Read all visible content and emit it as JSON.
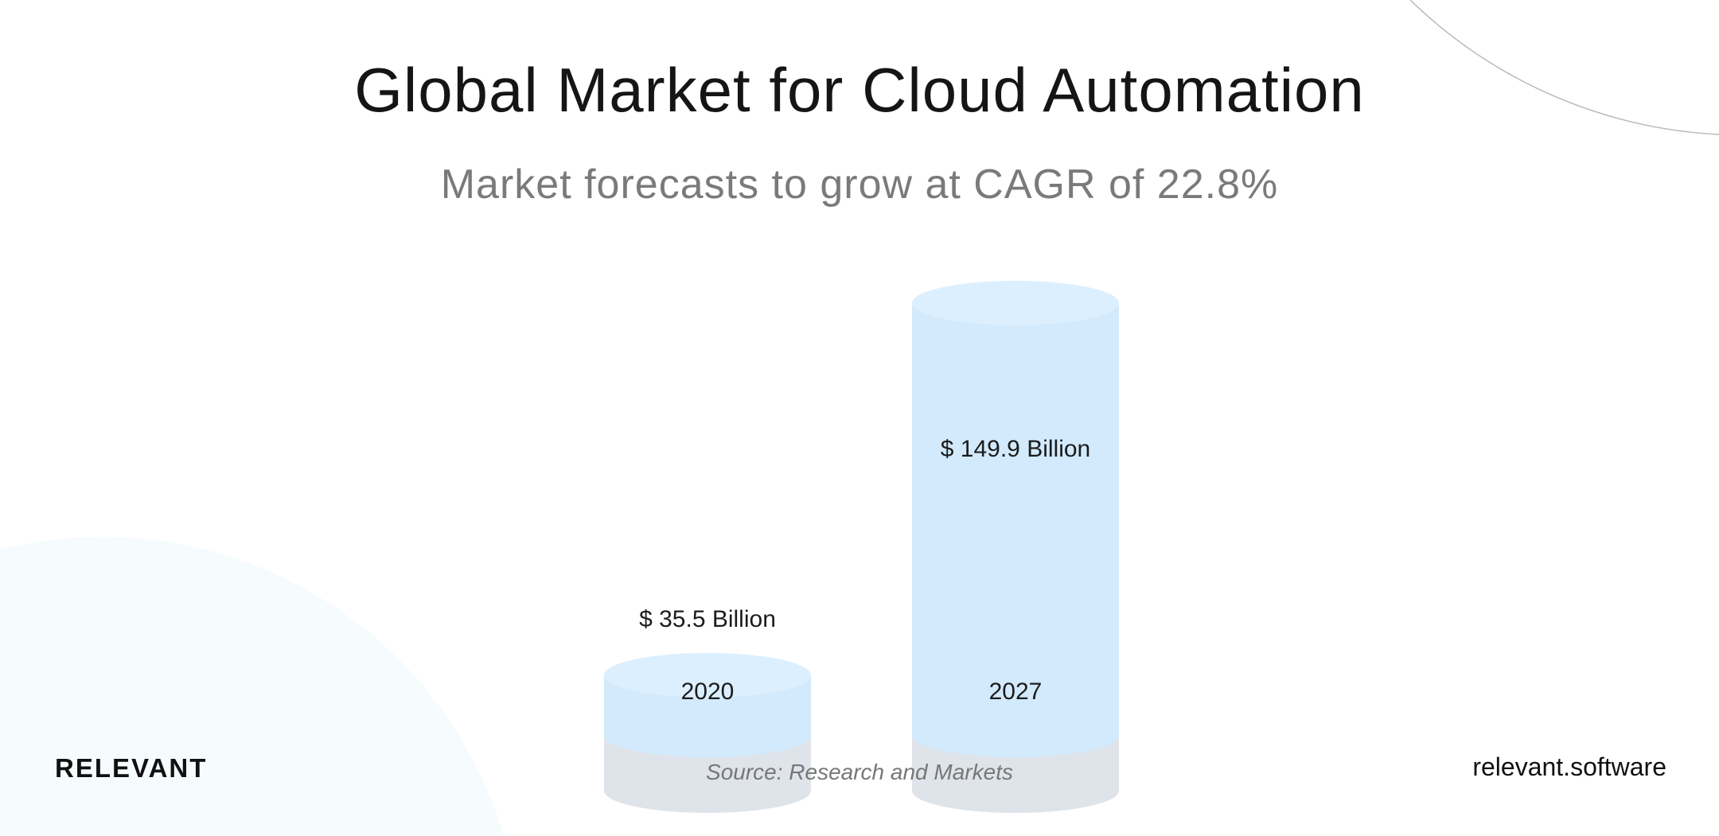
{
  "title": "Global Market for Cloud Automation",
  "subtitle": "Market forecasts to grow at CAGR of 22.8%",
  "chart_data": {
    "type": "bar",
    "style": "3d-cylinder",
    "categories": [
      "2020",
      "2027"
    ],
    "values": [
      35.5,
      149.9
    ],
    "data_labels": [
      "$ 35.5 Billion",
      "$ 149.9 Billion"
    ],
    "unit": "USD billion",
    "title": "Global Market for Cloud Automation",
    "subtitle": "Market forecasts to grow at CAGR of 22.8%",
    "grid": false,
    "colors": {
      "base": "#dfe4ea",
      "highlight": "#d2eafc",
      "top_base": "#e8ecf0",
      "top_highlight": "#dcefff"
    }
  },
  "source": "Source: Research and Markets",
  "brand": "RELEVANT",
  "website": "relevant.software"
}
